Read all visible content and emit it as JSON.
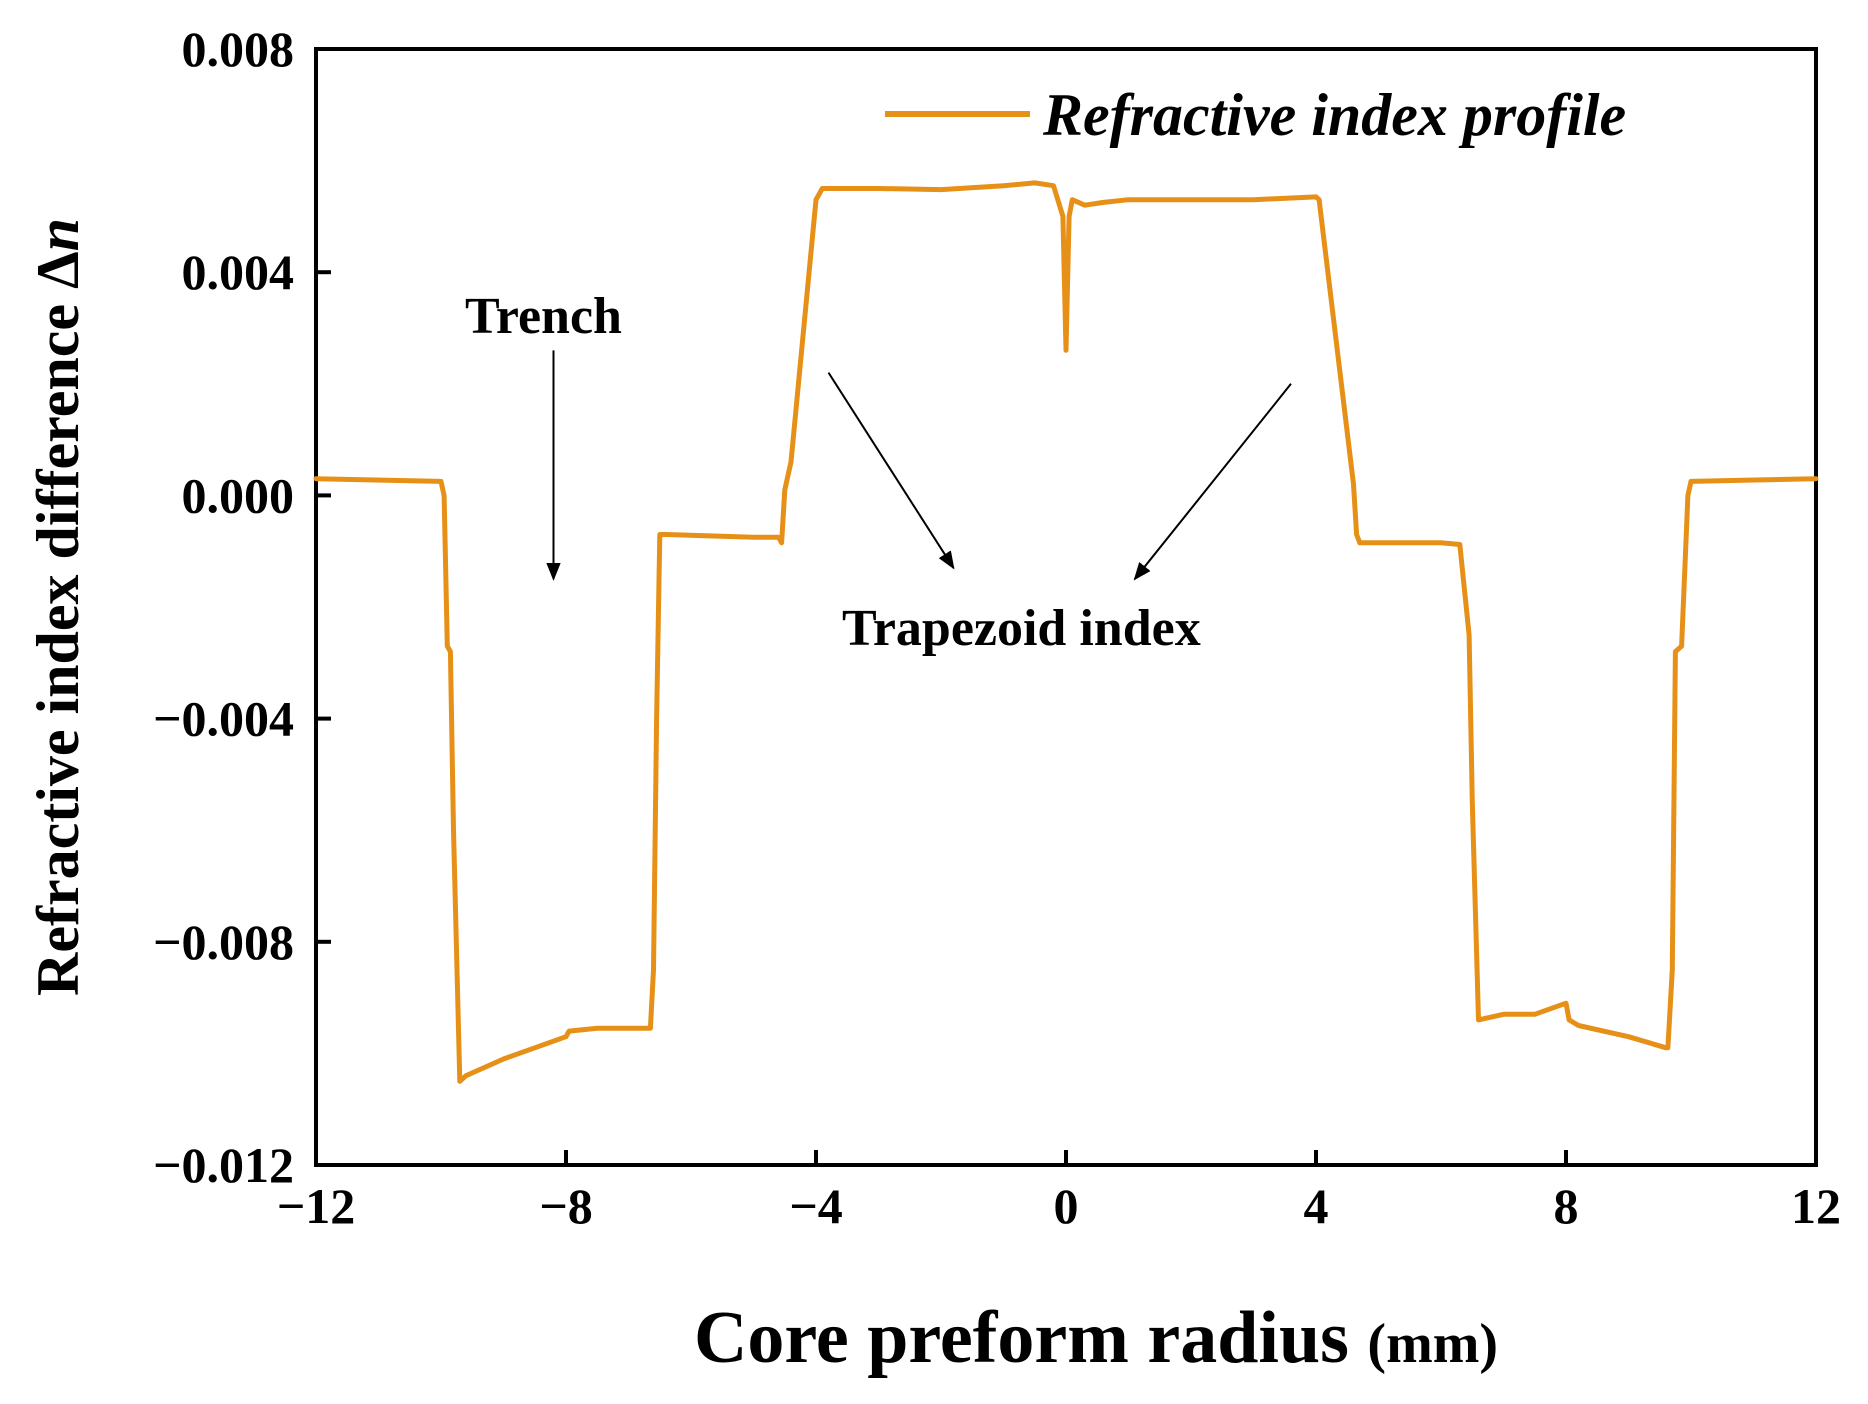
{
  "chart_data": {
    "type": "line",
    "title": "",
    "xlabel": "Core preform radius",
    "xlabel_unit": "(mm)",
    "ylabel": "Refractive index difference",
    "ylabel_symbol": "Δ",
    "ylabel_var": "n",
    "xlim": [
      -12,
      12
    ],
    "ylim": [
      -0.012,
      0.008
    ],
    "x_ticks": [
      -12,
      -8,
      -4,
      0,
      4,
      8,
      12
    ],
    "x_tick_labels": [
      "−12",
      "−8",
      "−4",
      "0",
      "4",
      "8",
      "12"
    ],
    "y_ticks": [
      0.008,
      0.004,
      0.0,
      -0.004,
      -0.008,
      -0.012
    ],
    "y_tick_labels": [
      "0.008",
      "0.004",
      "0.000",
      "−0.004",
      "−0.008",
      "−0.012"
    ],
    "grid": false,
    "legend_position": "top-right",
    "color": "#E69017",
    "series": [
      {
        "name": "Refractive index profile",
        "x": [
          -12.0,
          -10.0,
          -9.95,
          -9.9,
          -9.85,
          -9.8,
          -9.7,
          -9.6,
          -9.5,
          -9.0,
          -8.5,
          -8.0,
          -7.95,
          -7.5,
          -6.9,
          -6.65,
          -6.6,
          -6.55,
          -6.5,
          -6.4,
          -5.0,
          -4.6,
          -4.55,
          -4.5,
          -4.4,
          -4.0,
          -3.9,
          -3.0,
          -2.0,
          -1.0,
          -0.5,
          -0.2,
          -0.05,
          0.0,
          0.05,
          0.1,
          0.3,
          0.6,
          1.0,
          2.0,
          3.0,
          4.0,
          4.05,
          4.6,
          4.65,
          4.7,
          5.0,
          6.0,
          6.3,
          6.45,
          6.5,
          6.6,
          7.0,
          7.5,
          8.0,
          8.05,
          8.2,
          9.0,
          9.6,
          9.63,
          9.7,
          9.75,
          9.85,
          9.95,
          10.0,
          12.0
        ],
        "values": [
          0.0003,
          0.00025,
          0.0,
          -0.0027,
          -0.0028,
          -0.006,
          -0.0105,
          -0.0104,
          -0.01035,
          -0.0101,
          -0.0099,
          -0.0097,
          -0.0096,
          -0.00955,
          -0.00955,
          -0.00955,
          -0.0085,
          -0.004,
          -0.0007,
          -0.0007,
          -0.00075,
          -0.00075,
          -0.00085,
          0.0001,
          0.0006,
          0.0053,
          0.0055,
          0.0055,
          0.00548,
          0.00555,
          0.0056,
          0.00555,
          0.005,
          0.0026,
          0.005,
          0.0053,
          0.0052,
          0.00525,
          0.0053,
          0.0053,
          0.0053,
          0.00535,
          0.0053,
          0.0002,
          -0.0007,
          -0.00085,
          -0.00085,
          -0.00085,
          -0.00088,
          -0.0025,
          -0.0055,
          -0.0094,
          -0.0093,
          -0.0093,
          -0.0091,
          -0.0094,
          -0.0095,
          -0.0097,
          -0.0099,
          -0.0099,
          -0.0085,
          -0.0028,
          -0.0027,
          0.0,
          0.00025,
          0.0003
        ]
      }
    ],
    "annotations": [
      {
        "text": "Trench",
        "tail": [
          -8.2,
          0.0026
        ],
        "head": [
          -8.2,
          -0.0015
        ]
      },
      {
        "text": "Trapezoid index",
        "arrows": [
          {
            "tail": [
              -3.8,
              0.0022
            ],
            "head": [
              -1.8,
              -0.0013
            ]
          },
          {
            "tail": [
              3.6,
              0.002
            ],
            "head": [
              1.1,
              -0.0015
            ]
          }
        ]
      }
    ]
  }
}
